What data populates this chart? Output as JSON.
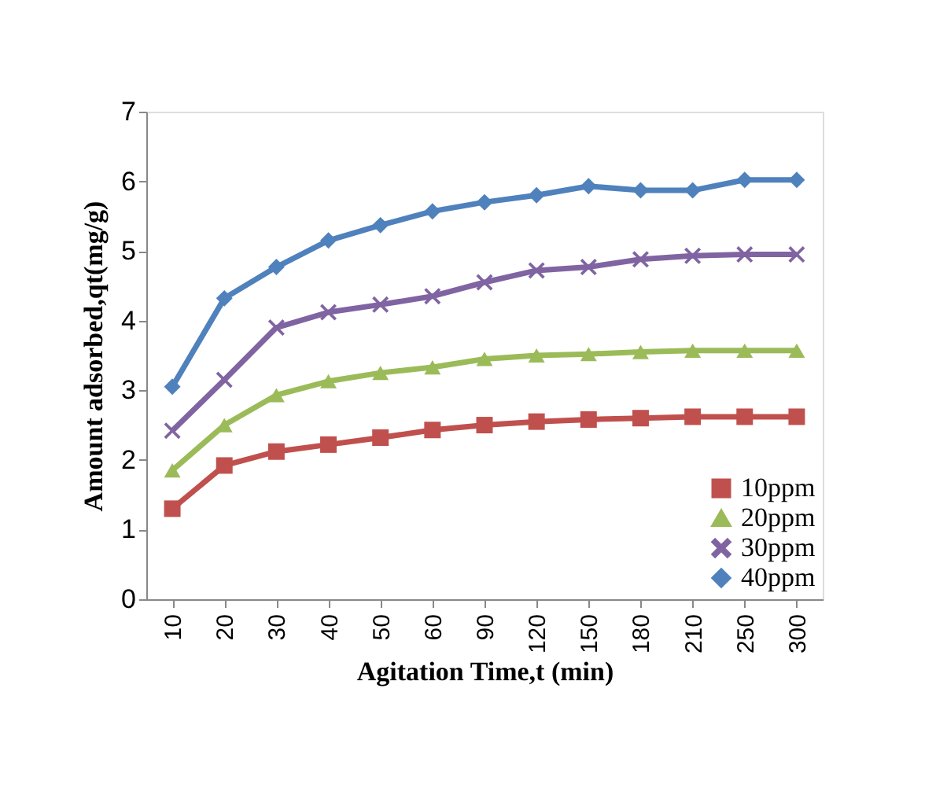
{
  "chart_data": {
    "type": "line",
    "xlabel": "Agitation Time,t (min)",
    "ylabel": "Amount adsorbed,qt(mg/g)",
    "categories": [
      "10",
      "20",
      "30",
      "40",
      "50",
      "60",
      "90",
      "120",
      "150",
      "180",
      "210",
      "250",
      "300"
    ],
    "ylim": [
      0,
      7
    ],
    "yticks": [
      0,
      1,
      2,
      3,
      4,
      5,
      6,
      7
    ],
    "grid": false,
    "legend": "bottom right",
    "series": [
      {
        "name": "10ppm",
        "color": "#c0504d",
        "marker": "square",
        "values": [
          1.3,
          1.92,
          2.12,
          2.22,
          2.32,
          2.43,
          2.5,
          2.55,
          2.58,
          2.6,
          2.62,
          2.62,
          2.62
        ]
      },
      {
        "name": "20ppm",
        "color": "#9bbb59",
        "marker": "triangle",
        "values": [
          1.85,
          2.5,
          2.93,
          3.13,
          3.25,
          3.33,
          3.45,
          3.5,
          3.52,
          3.55,
          3.57,
          3.57,
          3.57
        ]
      },
      {
        "name": "30ppm",
        "color": "#8064a2",
        "marker": "cross",
        "values": [
          2.42,
          3.15,
          3.9,
          4.12,
          4.23,
          4.35,
          4.55,
          4.72,
          4.77,
          4.88,
          4.93,
          4.95,
          4.95
        ]
      },
      {
        "name": "40ppm",
        "color": "#4f81bd",
        "marker": "diamond",
        "values": [
          3.05,
          4.32,
          4.77,
          5.15,
          5.37,
          5.57,
          5.7,
          5.8,
          5.93,
          5.87,
          5.87,
          6.02,
          6.02
        ]
      }
    ]
  }
}
